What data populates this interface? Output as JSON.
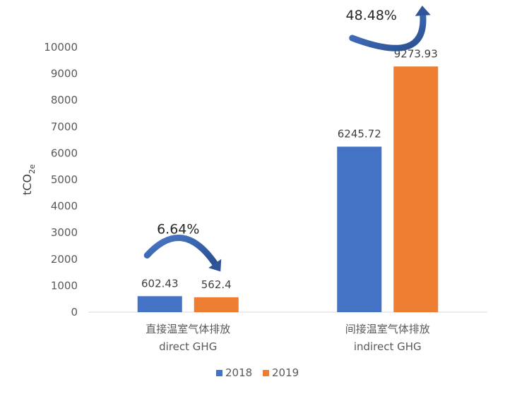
{
  "chart_data": {
    "type": "bar",
    "ylabel": "tCO2e",
    "ylabel_main": "tCO",
    "ylabel_sub": "2e",
    "ylim": [
      0,
      10000
    ],
    "yticks": [
      "0",
      "1000",
      "2000",
      "3000",
      "4000",
      "5000",
      "6000",
      "7000",
      "8000",
      "9000",
      "10000"
    ],
    "categories": [
      {
        "line1": "直接温室气体排放",
        "line2": "direct GHG"
      },
      {
        "line1": "间接温室气体排放",
        "line2": "indirect GHG"
      }
    ],
    "series": [
      {
        "name": "2018",
        "color": "#4472c4",
        "values": [
          602.43,
          6245.72
        ],
        "labels": [
          "602.43",
          "6245.72"
        ]
      },
      {
        "name": "2019",
        "color": "#ed7d31",
        "values": [
          562.4,
          9273.93
        ],
        "labels": [
          "562.4",
          "9273.93"
        ]
      }
    ],
    "annotations": [
      {
        "text": "6.64%",
        "category": 0,
        "direction": "down"
      },
      {
        "text": "48.48%",
        "category": 1,
        "direction": "up"
      }
    ],
    "arrow_color": "#2f5597",
    "grid": false,
    "legend_position": "bottom"
  }
}
